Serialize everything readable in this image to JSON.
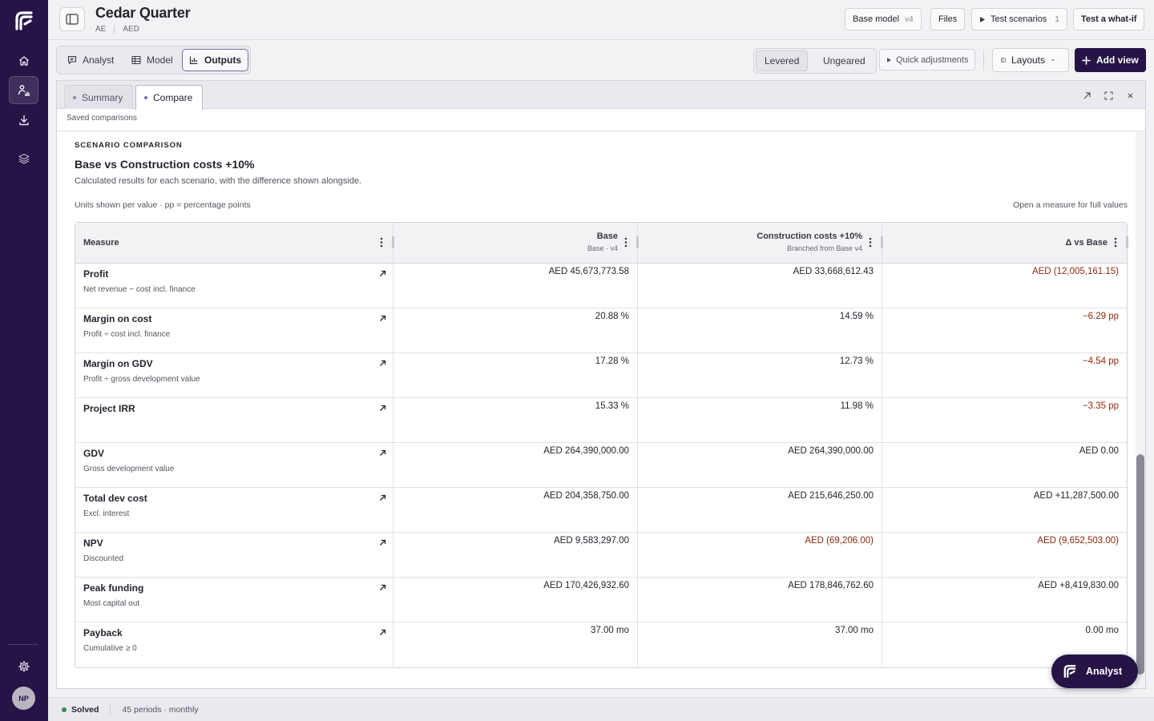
{
  "app": {
    "project_title": "Cedar Quarter",
    "region": "AE",
    "currency": "AED",
    "user_initials": "NP"
  },
  "rail": {
    "items": [
      "home",
      "analyst",
      "download",
      "layers"
    ],
    "active": "analyst"
  },
  "header": {
    "base_model_label": "Base model",
    "base_model_version": "v4",
    "files_label": "Files",
    "test_scenarios_label": "Test scenarios",
    "test_scenarios_count": "1",
    "test_whatif_label": "Test a what-if"
  },
  "toolbar": {
    "tabs": [
      "Analyst",
      "Model",
      "Outputs"
    ],
    "active_tab": "Outputs",
    "leverage_options": [
      "Levered",
      "Ungeared"
    ],
    "active_leverage": "Levered",
    "quick_adjustments_label": "Quick adjustments",
    "layouts_label": "Layouts",
    "add_view_label": "Add view"
  },
  "panel": {
    "tabs": [
      "Summary",
      "Compare"
    ],
    "active_tab": "Compare",
    "saved_comparisons_label": "Saved comparisons",
    "eyebrow": "SCENARIO COMPARISON",
    "title": "Base vs Construction costs +10%",
    "subtitle": "Calculated results for each scenario, with the difference shown alongside.",
    "units_note": "Units shown per value · pp = percentage points",
    "open_hint": "Open a measure for full values"
  },
  "table": {
    "columns": [
      {
        "label": "Measure",
        "sub": ""
      },
      {
        "label": "Base",
        "sub": "Base · v4"
      },
      {
        "label": "Construction costs +10%",
        "sub": "Branched from Base v4"
      },
      {
        "label": "Δ vs Base",
        "sub": ""
      }
    ],
    "rows": [
      {
        "name": "Profit",
        "desc": "Net revenue − cost incl. finance",
        "base": "AED 45,673,773.58",
        "scenario": "AED 33,668,612.43",
        "delta": "AED (12,005,161.15)",
        "scenario_neg": false,
        "delta_neg": true
      },
      {
        "name": "Margin on cost",
        "desc": "Profit ÷ cost incl. finance",
        "base": "20.88 %",
        "scenario": "14.59 %",
        "delta": "−6.29 pp",
        "scenario_neg": false,
        "delta_neg": true
      },
      {
        "name": "Margin on GDV",
        "desc": "Profit ÷ gross development value",
        "base": "17.28 %",
        "scenario": "12.73 %",
        "delta": "−4.54 pp",
        "scenario_neg": false,
        "delta_neg": true
      },
      {
        "name": "Project IRR",
        "desc": "",
        "base": "15.33 %",
        "scenario": "11.98 %",
        "delta": "−3.35 pp",
        "scenario_neg": false,
        "delta_neg": true
      },
      {
        "name": "GDV",
        "desc": "Gross development value",
        "base": "AED 264,390,000.00",
        "scenario": "AED 264,390,000.00",
        "delta": "AED 0.00",
        "scenario_neg": false,
        "delta_neg": false
      },
      {
        "name": "Total dev cost",
        "desc": "Excl. interest",
        "base": "AED 204,358,750.00",
        "scenario": "AED 215,646,250.00",
        "delta": "AED +11,287,500.00",
        "scenario_neg": false,
        "delta_neg": false
      },
      {
        "name": "NPV",
        "desc": "Discounted",
        "base": "AED 9,583,297.00",
        "scenario": "AED (69,206.00)",
        "delta": "AED (9,652,503.00)",
        "scenario_neg": true,
        "delta_neg": true
      },
      {
        "name": "Peak funding",
        "desc": "Most capital out",
        "base": "AED 170,426,932.60",
        "scenario": "AED 178,846,762.60",
        "delta": "AED +8,419,830.00",
        "scenario_neg": false,
        "delta_neg": false
      },
      {
        "name": "Payback",
        "desc": "Cumulative ≥ 0",
        "base": "37.00 mo",
        "scenario": "37.00 mo",
        "delta": "0.00 mo",
        "scenario_neg": false,
        "delta_neg": false
      }
    ]
  },
  "fab": {
    "label": "Analyst"
  },
  "status": {
    "state": "Solved",
    "periods": "45 periods · monthly"
  },
  "colors": {
    "brand": "#261447",
    "accent": "#7b6aa8",
    "negative": "#8c2a0f",
    "success": "#2f8c4f"
  }
}
